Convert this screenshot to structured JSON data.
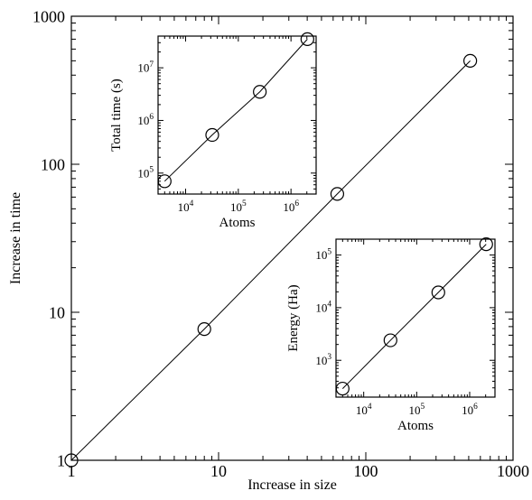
{
  "chart_data": [
    {
      "id": "main",
      "type": "line",
      "title": "",
      "xlabel": "Increase in size",
      "ylabel": "Increase in time",
      "xscale": "log",
      "yscale": "log",
      "xlim": [
        1,
        1000
      ],
      "ylim": [
        1,
        1000
      ],
      "x_ticks": [
        1,
        10,
        100,
        1000
      ],
      "x_tick_labels": [
        "1",
        "10",
        "100",
        "1000"
      ],
      "y_ticks": [
        1,
        10,
        100,
        1000
      ],
      "y_tick_labels": [
        "1",
        "10",
        "100",
        "1000"
      ],
      "grid": false,
      "legend": "none",
      "series": [
        {
          "x": [
            1,
            8,
            64,
            512
          ],
          "y": [
            1,
            7.7,
            63,
            500
          ],
          "marker": "circle"
        }
      ]
    },
    {
      "id": "inset-time",
      "type": "line",
      "title": "",
      "xlabel": "Atoms",
      "ylabel": "Total time (s)",
      "xscale": "log",
      "yscale": "log",
      "xlim": [
        3000,
        3000000
      ],
      "ylim": [
        40000,
        40000000
      ],
      "x_ticks": [
        10000,
        100000,
        1000000
      ],
      "x_tick_labels": [
        [
          "10",
          "4"
        ],
        [
          "10",
          "5"
        ],
        [
          "10",
          "6"
        ]
      ],
      "y_ticks": [
        100000,
        1000000,
        10000000
      ],
      "y_tick_labels": [
        [
          "10",
          "5"
        ],
        [
          "10",
          "6"
        ],
        [
          "10",
          "7"
        ]
      ],
      "grid": false,
      "legend": "none",
      "series": [
        {
          "x": [
            4000,
            32000,
            256000,
            2048000
          ],
          "y": [
            70000,
            530000,
            3500000,
            35000000
          ],
          "marker": "circle"
        }
      ]
    },
    {
      "id": "inset-energy",
      "type": "line",
      "title": "",
      "xlabel": "Atoms",
      "ylabel": "Energy (Ha)",
      "xscale": "log",
      "yscale": "log",
      "xlim": [
        3000,
        3000000
      ],
      "ylim": [
        200,
        200000
      ],
      "x_ticks": [
        10000,
        100000,
        1000000
      ],
      "x_tick_labels": [
        [
          "10",
          "4"
        ],
        [
          "10",
          "5"
        ],
        [
          "10",
          "6"
        ]
      ],
      "y_ticks": [
        1000,
        10000,
        100000
      ],
      "y_tick_labels": [
        [
          "10",
          "3"
        ],
        [
          "10",
          "4"
        ],
        [
          "10",
          "5"
        ]
      ],
      "grid": false,
      "legend": "none",
      "series": [
        {
          "x": [
            4000,
            32000,
            256000,
            2048000
          ],
          "y": [
            290,
            2400,
            19500,
            160000
          ],
          "marker": "circle"
        }
      ]
    }
  ]
}
